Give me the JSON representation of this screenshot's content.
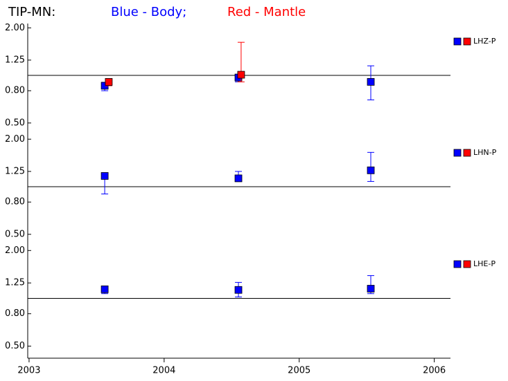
{
  "header": {
    "title": "TIP-MN:",
    "blue_label": "Blue - Body;",
    "red_label": "Red - Mantle"
  },
  "chart_data": [
    {
      "type": "errorbar",
      "label": "LHZ-P",
      "log_scale_y": true,
      "reference_line": 1,
      "xlim": [
        2002.99,
        2006.12
      ],
      "xticks": [
        2003,
        2004,
        2005,
        2006
      ],
      "ylim": [
        0.47,
        2.13
      ],
      "yticks": [
        {
          "value": 0.5,
          "label": "0.50"
        },
        {
          "value": 0.8,
          "label": "0.80"
        },
        {
          "value": 1.25,
          "label": "1.25"
        },
        {
          "value": 2,
          "label": "2.00"
        }
      ],
      "series": [
        {
          "color": "#0000ff",
          "x": [
            2003.56,
            2004.55,
            2005.53
          ],
          "values": [
            0.86,
            0.97,
            0.91
          ],
          "low": [
            0.8,
            0.91,
            0.7
          ],
          "high": [
            0.905,
            1.01,
            1.15
          ]
        },
        {
          "color": "#ff0000",
          "x": [
            2003.59,
            2004.57
          ],
          "values": [
            0.91,
            1.01
          ],
          "low": [
            0.86,
            0.91
          ],
          "high": [
            0.95,
            1.62
          ]
        }
      ]
    },
    {
      "type": "errorbar",
      "label": "LHN-P",
      "log_scale_y": true,
      "reference_line": 1,
      "xlim": [
        2002.99,
        2006.12
      ],
      "xticks": [
        2003,
        2004,
        2005,
        2006
      ],
      "ylim": [
        0.47,
        2.13
      ],
      "yticks": [
        {
          "value": 0.5,
          "label": "0.50"
        },
        {
          "value": 0.8,
          "label": "0.80"
        },
        {
          "value": 1.25,
          "label": "1.25"
        },
        {
          "value": 2,
          "label": "2.00"
        }
      ],
      "series": [
        {
          "color": "#0000ff",
          "x": [
            2003.56,
            2004.55,
            2005.53
          ],
          "values": [
            1.17,
            1.13,
            1.27
          ],
          "low": [
            0.9,
            1.08,
            1.08
          ],
          "high": [
            1.22,
            1.25,
            1.65
          ]
        },
        {
          "color": "#ff0000",
          "x": [],
          "values": [],
          "low": [],
          "high": []
        }
      ]
    },
    {
      "type": "errorbar",
      "label": "LHE-P",
      "log_scale_y": true,
      "reference_line": 1,
      "xlim": [
        2002.99,
        2006.12
      ],
      "xticks": [
        2003,
        2004,
        2005,
        2006
      ],
      "ylim": [
        0.42,
        2.13
      ],
      "yticks": [
        {
          "value": 0.5,
          "label": "0.50"
        },
        {
          "value": 0.8,
          "label": "0.80"
        },
        {
          "value": 1.25,
          "label": "1.25"
        },
        {
          "value": 2,
          "label": "2.00"
        }
      ],
      "series": [
        {
          "color": "#0000ff",
          "x": [
            2003.56,
            2004.55,
            2005.53
          ],
          "values": [
            1.14,
            1.13,
            1.15
          ],
          "low": [
            1.07,
            1.02,
            1.07
          ],
          "high": [
            1.19,
            1.26,
            1.39
          ]
        },
        {
          "color": "#ff0000",
          "x": [],
          "values": [],
          "low": [],
          "high": []
        }
      ]
    }
  ]
}
